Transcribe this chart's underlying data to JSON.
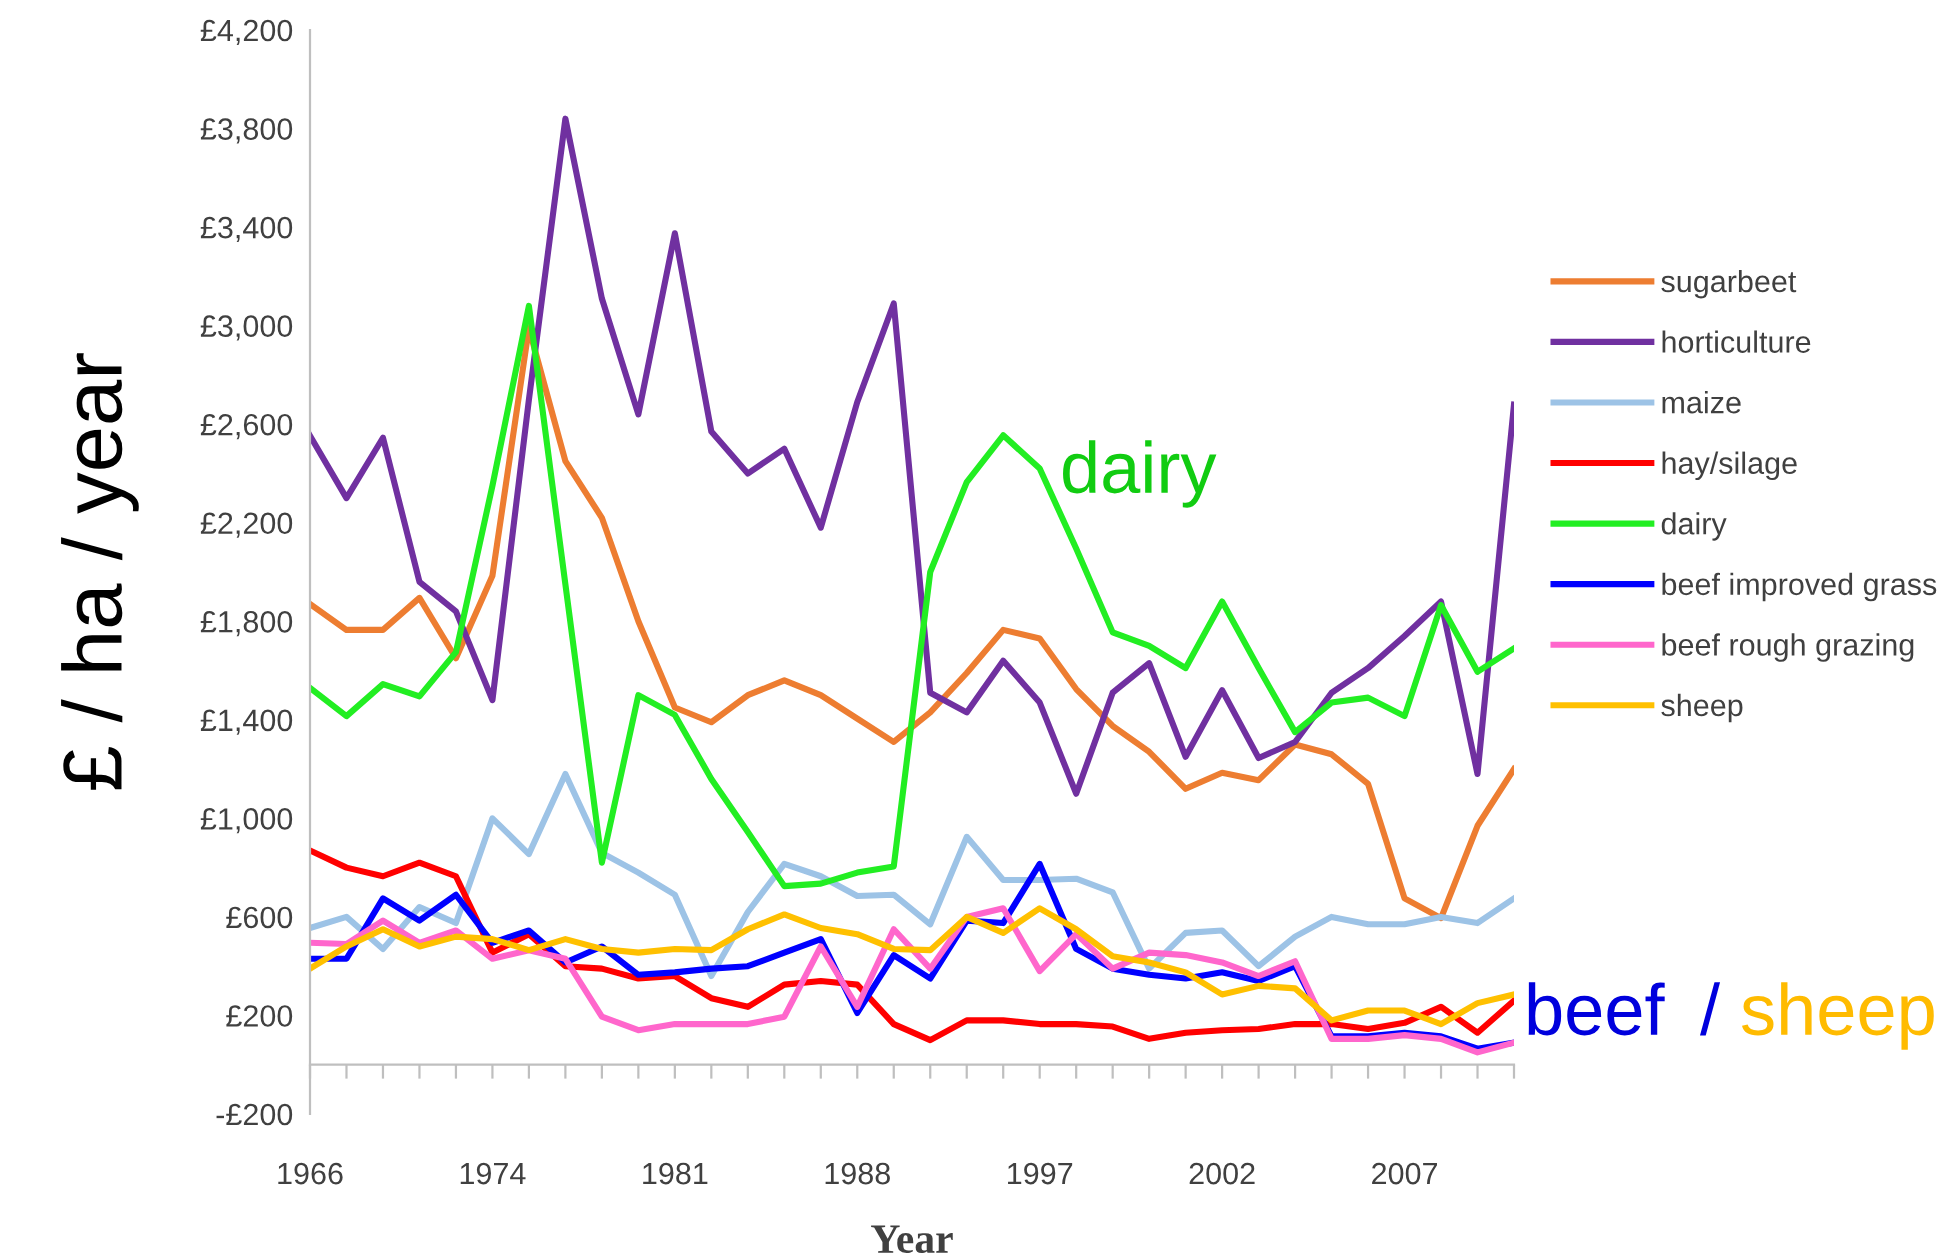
{
  "chart_data": {
    "type": "line",
    "xlabel": "Year",
    "ylabel": "£ / ha / year",
    "categories": [
      "1966",
      null,
      null,
      null,
      null,
      "1974",
      null,
      null,
      null,
      null,
      "1981",
      null,
      null,
      null,
      null,
      "1988",
      null,
      null,
      null,
      null,
      "1997",
      null,
      null,
      null,
      null,
      "2002",
      null,
      null,
      null,
      null,
      "2007",
      null,
      null,
      null
    ],
    "series": [
      {
        "name": "sugarbeet",
        "color": "#ed7d31",
        "values": [
          1870,
          1765,
          1765,
          1895,
          1650,
          1985,
          2990,
          2450,
          2220,
          1800,
          1450,
          1390,
          1500,
          1560,
          1500,
          1405,
          1310,
          1430,
          1590,
          1765,
          1730,
          1525,
          1375,
          1270,
          1120,
          1185,
          1155,
          1300,
          1260,
          1140,
          675,
          595,
          970,
          1200
        ]
      },
      {
        "name": "horticulture",
        "color": "#7030a0",
        "values": [
          2553,
          2300,
          2545,
          1960,
          1840,
          1480,
          2700,
          3840,
          3110,
          2640,
          3375,
          2570,
          2400,
          2500,
          2180,
          2690,
          3090,
          1510,
          1430,
          1640,
          1470,
          1100,
          1510,
          1630,
          1250,
          1520,
          1245,
          1310,
          1510,
          1610,
          1740,
          1880,
          1180,
          2680
        ]
      },
      {
        "name": "maize",
        "color": "#9dc3e6",
        "values": [
          555,
          600,
          470,
          640,
          575,
          1000,
          855,
          1180,
          860,
          780,
          690,
          360,
          620,
          815,
          765,
          685,
          690,
          570,
          925,
          750,
          750,
          755,
          700,
          390,
          535,
          545,
          400,
          520,
          600,
          570,
          570,
          600,
          575,
          675
        ]
      },
      {
        "name": "hay/silage",
        "color": "#ff0000",
        "values": [
          870,
          800,
          765,
          820,
          765,
          455,
          530,
          400,
          390,
          350,
          360,
          270,
          235,
          325,
          340,
          325,
          165,
          100,
          180,
          180,
          165,
          165,
          155,
          105,
          130,
          140,
          145,
          165,
          165,
          145,
          170,
          235,
          130,
          260
        ]
      },
      {
        "name": "dairy",
        "color": "#22ee22",
        "values": [
          1530,
          1415,
          1545,
          1495,
          1675,
          2350,
          3080,
          1950,
          820,
          1500,
          1420,
          1160,
          945,
          725,
          735,
          780,
          805,
          2000,
          2365,
          2555,
          2420,
          2095,
          1755,
          1700,
          1610,
          1880,
          1610,
          1350,
          1470,
          1490,
          1415,
          1865,
          1595,
          1690
        ]
      },
      {
        "name": "beef improved grass",
        "color": "#0000ff",
        "values": [
          430,
          430,
          675,
          585,
          690,
          495,
          545,
          415,
          480,
          365,
          375,
          390,
          400,
          455,
          510,
          210,
          445,
          350,
          585,
          575,
          815,
          470,
          390,
          365,
          350,
          375,
          340,
          400,
          115,
          115,
          130,
          115,
          65,
          90
        ]
      },
      {
        "name": "beef rough grazing",
        "color": "#ff66cc",
        "values": [
          495,
          490,
          585,
          495,
          545,
          430,
          465,
          430,
          195,
          140,
          165,
          165,
          165,
          195,
          480,
          235,
          550,
          390,
          600,
          635,
          380,
          530,
          390,
          455,
          445,
          415,
          360,
          420,
          105,
          105,
          120,
          105,
          50,
          90
        ]
      },
      {
        "name": "sheep",
        "color": "#ffc000",
        "values": [
          390,
          480,
          550,
          480,
          520,
          510,
          465,
          510,
          470,
          455,
          470,
          465,
          550,
          610,
          555,
          530,
          470,
          465,
          600,
          535,
          635,
          550,
          440,
          415,
          375,
          285,
          320,
          310,
          180,
          220,
          220,
          165,
          250,
          285
        ]
      }
    ],
    "ylim": [
      -200,
      4200
    ],
    "yticks": [
      {
        "value": -200,
        "label": "-£200"
      },
      {
        "value": 200,
        "label": "£200"
      },
      {
        "value": 600,
        "label": "£600"
      },
      {
        "value": 1000,
        "label": "£1,000"
      },
      {
        "value": 1400,
        "label": "£1,400"
      },
      {
        "value": 1800,
        "label": "£1,800"
      },
      {
        "value": 2200,
        "label": "£2,200"
      },
      {
        "value": 2600,
        "label": "£2,600"
      },
      {
        "value": 3000,
        "label": "£3,000"
      },
      {
        "value": 3400,
        "label": "£3,400"
      },
      {
        "value": 3800,
        "label": "£3,800"
      },
      {
        "value": 4200,
        "label": "£4,200"
      }
    ],
    "annotations": [
      "dairy",
      "beef",
      "/",
      "sheep"
    ],
    "legend": "right",
    "grid": false,
    "marker": "none",
    "line_style": "solid"
  }
}
